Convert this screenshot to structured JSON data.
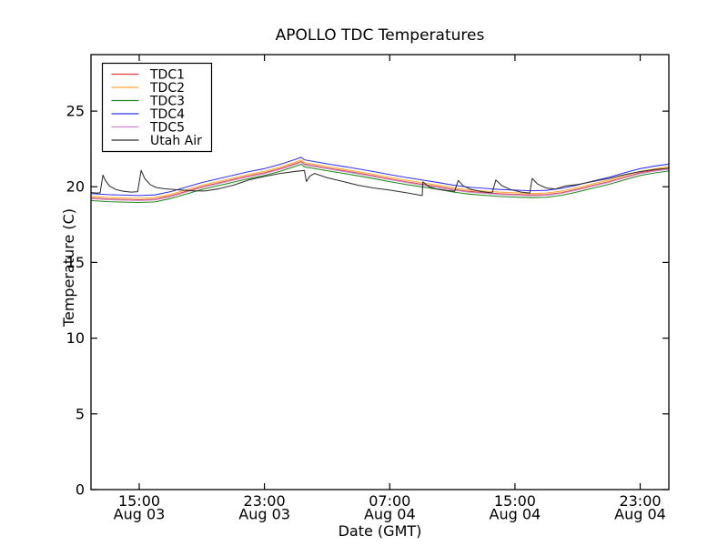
{
  "chart_data": {
    "type": "line",
    "title": "APOLLO TDC Temperatures",
    "xlabel": "Date (GMT)",
    "ylabel": "Temperature (C)",
    "x_unit": "hours since Aug 03 00:00 GMT",
    "xlim": [
      11.92,
      48.83
    ],
    "ylim": [
      0,
      28.73
    ],
    "grid": false,
    "legend_position": "upper left",
    "axis_color": "#000000",
    "background": "#ffffff",
    "yticks": [
      0,
      5,
      10,
      15,
      20,
      25
    ],
    "xticks": [
      {
        "hour": 15,
        "time": "15:00",
        "date": "Aug 03"
      },
      {
        "hour": 23,
        "time": "23:00",
        "date": "Aug 03"
      },
      {
        "hour": 31,
        "time": "07:00",
        "date": "Aug 04"
      },
      {
        "hour": 39,
        "time": "15:00",
        "date": "Aug 04"
      },
      {
        "hour": 47,
        "time": "23:00",
        "date": "Aug 04"
      }
    ],
    "tdc_x": [
      11.92,
      13,
      14,
      15,
      16,
      17,
      18,
      19,
      20,
      21,
      22,
      23,
      24,
      25,
      25.35,
      25.55,
      26,
      27,
      28,
      29,
      30,
      31,
      32,
      33,
      34,
      35,
      36,
      37,
      38,
      39,
      40,
      41,
      42,
      43,
      44,
      45,
      46,
      47,
      48,
      48.83
    ],
    "series": [
      {
        "name": "TDC1",
        "color": "#e23b33",
        "values": [
          19.27,
          19.2,
          19.17,
          19.14,
          19.18,
          19.4,
          19.7,
          20.0,
          20.24,
          20.48,
          20.72,
          20.92,
          21.2,
          21.54,
          21.67,
          21.5,
          21.42,
          21.24,
          21.07,
          20.9,
          20.72,
          20.52,
          20.34,
          20.18,
          20.02,
          19.84,
          19.7,
          19.62,
          19.54,
          19.5,
          19.46,
          19.48,
          19.62,
          19.84,
          20.1,
          20.34,
          20.64,
          20.92,
          21.1,
          21.22
        ]
      },
      {
        "name": "TDC2",
        "color": "#ffa937",
        "glitch_ticks": true,
        "values": [
          19.37,
          19.3,
          19.27,
          19.24,
          19.28,
          19.5,
          19.8,
          20.1,
          20.34,
          20.58,
          20.82,
          21.02,
          21.3,
          21.64,
          21.77,
          21.6,
          21.52,
          21.34,
          21.17,
          21.0,
          20.82,
          20.62,
          20.44,
          20.28,
          20.12,
          19.94,
          19.8,
          19.72,
          19.64,
          19.6,
          19.56,
          19.58,
          19.72,
          19.94,
          20.2,
          20.44,
          20.74,
          21.02,
          21.2,
          21.32
        ]
      },
      {
        "name": "TDC3",
        "color": "#1e8b1e",
        "values": [
          19.09,
          19.02,
          18.99,
          18.96,
          19.0,
          19.22,
          19.52,
          19.82,
          20.06,
          20.3,
          20.54,
          20.74,
          21.02,
          21.36,
          21.49,
          21.32,
          21.24,
          21.06,
          20.89,
          20.72,
          20.54,
          20.34,
          20.16,
          20.0,
          19.84,
          19.66,
          19.52,
          19.44,
          19.36,
          19.32,
          19.28,
          19.3,
          19.44,
          19.66,
          19.92,
          20.16,
          20.46,
          20.74,
          20.92,
          21.04
        ]
      },
      {
        "name": "TDC4",
        "color": "#3434ef",
        "values": [
          19.55,
          19.48,
          19.45,
          19.42,
          19.46,
          19.68,
          19.98,
          20.28,
          20.52,
          20.76,
          21.0,
          21.2,
          21.48,
          21.82,
          21.95,
          21.78,
          21.7,
          21.52,
          21.35,
          21.18,
          21.0,
          20.8,
          20.62,
          20.46,
          20.3,
          20.12,
          19.98,
          19.9,
          19.82,
          19.78,
          19.74,
          19.76,
          19.9,
          20.12,
          20.38,
          20.62,
          20.92,
          21.2,
          21.38,
          21.5
        ]
      },
      {
        "name": "TDC5",
        "color": "#cf8ad2",
        "values": [
          19.22,
          19.15,
          19.12,
          19.09,
          19.13,
          19.35,
          19.65,
          19.95,
          20.19,
          20.43,
          20.67,
          20.87,
          21.15,
          21.49,
          21.62,
          21.45,
          21.37,
          21.19,
          21.02,
          20.85,
          20.67,
          20.47,
          20.29,
          20.13,
          19.97,
          19.79,
          19.65,
          19.57,
          19.49,
          19.45,
          19.41,
          19.43,
          19.57,
          19.79,
          20.05,
          20.29,
          20.59,
          20.87,
          21.05,
          21.17
        ]
      },
      {
        "name": "Utah Air",
        "color": "#2e2e2e",
        "points": [
          [
            11.92,
            19.62
          ],
          [
            12.3,
            19.58
          ],
          [
            12.5,
            19.6
          ],
          [
            12.68,
            20.77
          ],
          [
            12.85,
            20.4
          ],
          [
            13.1,
            20.05
          ],
          [
            13.5,
            19.82
          ],
          [
            14.0,
            19.7
          ],
          [
            14.5,
            19.65
          ],
          [
            14.9,
            19.68
          ],
          [
            15.12,
            21.08
          ],
          [
            15.35,
            20.55
          ],
          [
            15.7,
            20.15
          ],
          [
            16.1,
            19.95
          ],
          [
            16.6,
            19.87
          ],
          [
            17.5,
            19.8
          ],
          [
            18.5,
            19.73
          ],
          [
            19.2,
            19.72
          ],
          [
            20,
            19.85
          ],
          [
            21,
            20.1
          ],
          [
            22,
            20.45
          ],
          [
            23,
            20.68
          ],
          [
            24,
            20.88
          ],
          [
            25,
            21.02
          ],
          [
            25.55,
            21.08
          ],
          [
            25.68,
            20.35
          ],
          [
            25.9,
            20.7
          ],
          [
            26.2,
            20.88
          ],
          [
            27,
            20.6
          ],
          [
            28,
            20.35
          ],
          [
            29,
            20.1
          ],
          [
            30,
            19.92
          ],
          [
            31,
            19.78
          ],
          [
            32,
            19.62
          ],
          [
            32.9,
            19.45
          ],
          [
            33.08,
            19.42
          ],
          [
            33.12,
            20.32
          ],
          [
            33.5,
            20.0
          ],
          [
            34.0,
            19.85
          ],
          [
            34.7,
            19.75
          ],
          [
            35.15,
            19.7
          ],
          [
            35.38,
            20.42
          ],
          [
            35.7,
            20.05
          ],
          [
            36.2,
            19.82
          ],
          [
            36.9,
            19.68
          ],
          [
            37.55,
            19.6
          ],
          [
            37.78,
            20.45
          ],
          [
            38.15,
            20.08
          ],
          [
            38.7,
            19.82
          ],
          [
            39.4,
            19.65
          ],
          [
            39.95,
            19.58
          ],
          [
            40.1,
            20.55
          ],
          [
            40.45,
            20.18
          ],
          [
            41.0,
            19.92
          ],
          [
            41.6,
            19.85
          ],
          [
            42.2,
            20.05
          ],
          [
            43,
            20.15
          ],
          [
            44,
            20.35
          ],
          [
            45,
            20.55
          ],
          [
            46,
            20.8
          ],
          [
            47,
            21.0
          ],
          [
            48,
            21.15
          ],
          [
            48.83,
            21.22
          ]
        ]
      }
    ]
  }
}
